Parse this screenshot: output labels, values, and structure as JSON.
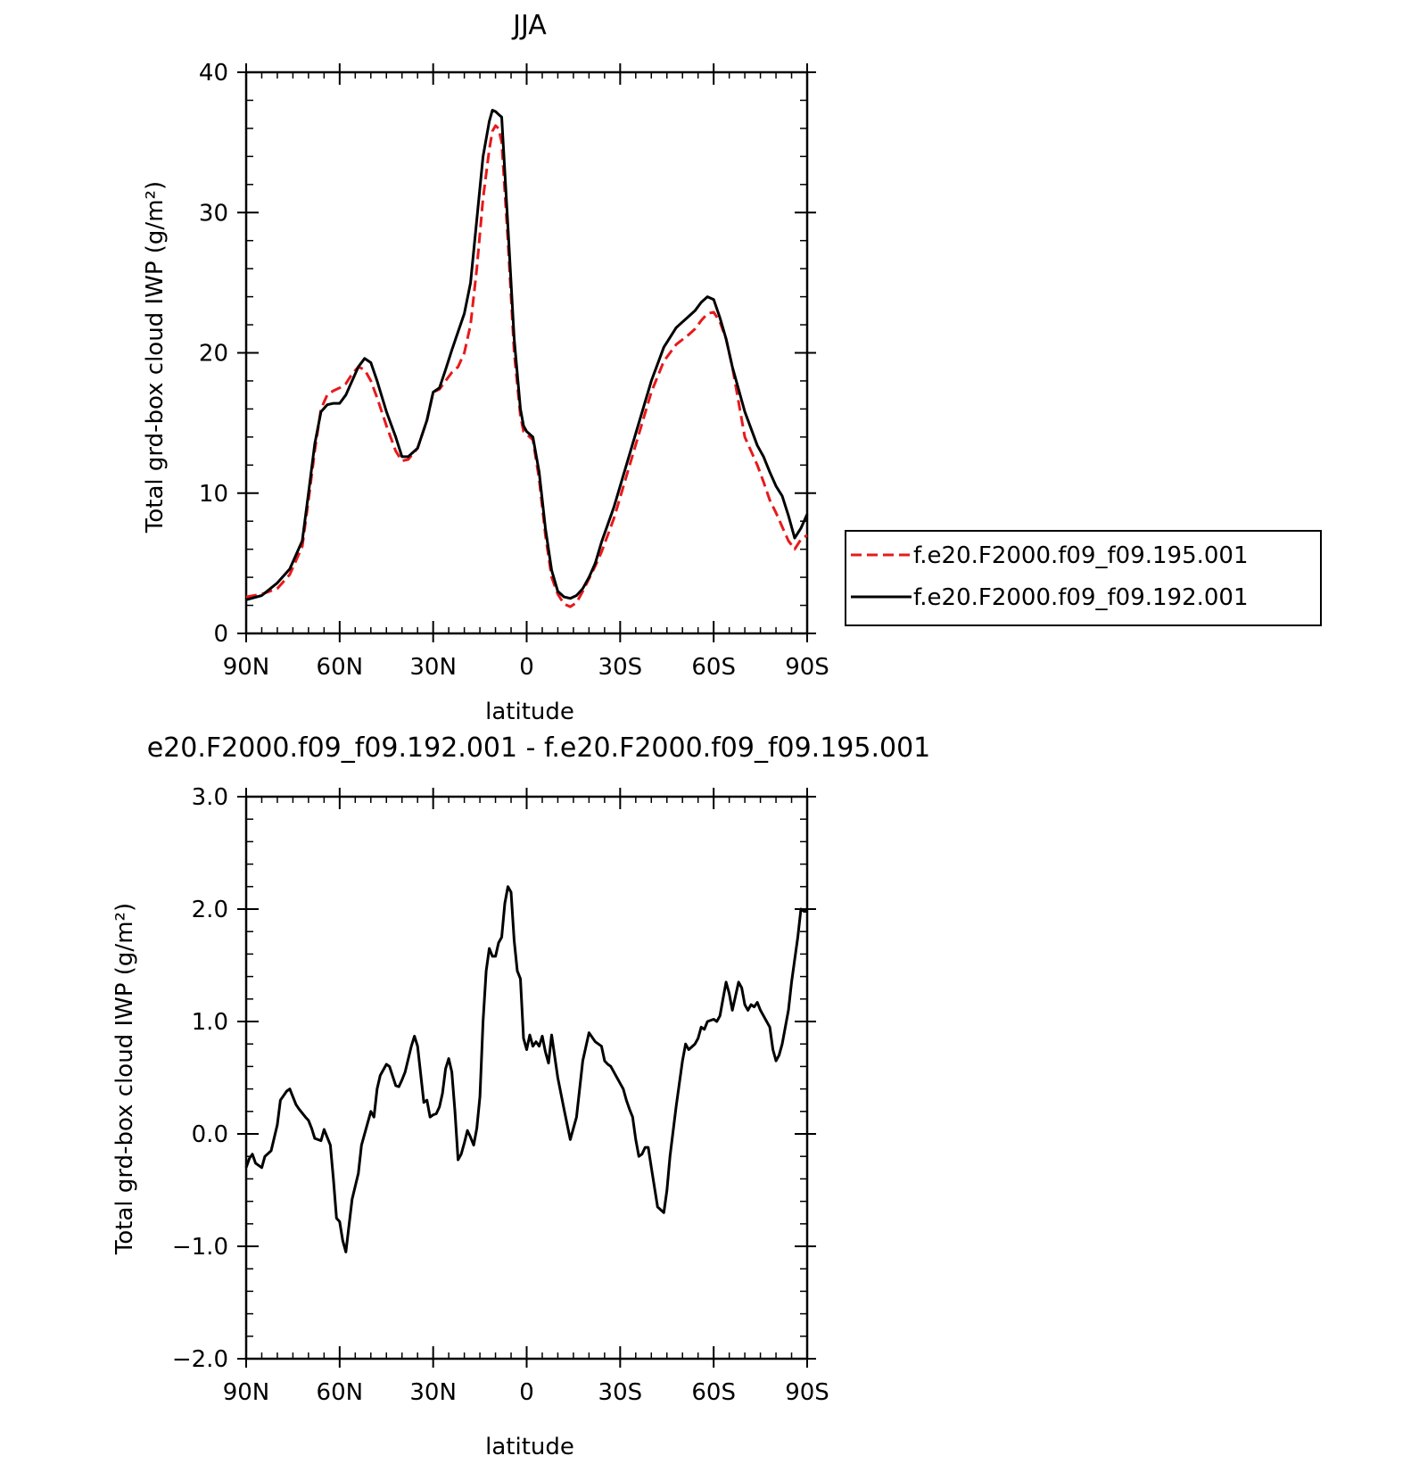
{
  "chart_data": [
    {
      "type": "line",
      "title": "JJA",
      "xlabel": "latitude",
      "ylabel": "Total grd-box cloud IWP (g/m²)",
      "xlim": [
        90,
        -90
      ],
      "ylim": [
        0,
        40
      ],
      "xticks": [
        90,
        60,
        30,
        0,
        -30,
        -60,
        -90
      ],
      "xtick_labels": [
        "90N",
        "60N",
        "30N",
        "0",
        "30S",
        "60S",
        "90S"
      ],
      "yticks": [
        0,
        10,
        20,
        30,
        40
      ],
      "ytick_labels": [
        "0",
        "10",
        "20",
        "30",
        "40"
      ],
      "legend_position": "right",
      "series": [
        {
          "name": "f.e20.F2000.f09_f09.195.001",
          "color": "#e8191b",
          "dash": "dashed",
          "x": [
            90,
            85,
            80,
            76,
            72,
            70,
            68,
            66,
            64,
            62,
            60,
            58,
            56,
            54,
            52,
            50,
            48,
            45,
            42,
            40,
            38,
            35,
            32,
            30,
            28,
            26,
            24,
            22,
            20,
            18,
            16,
            14,
            12,
            11,
            10,
            9,
            8,
            6,
            4,
            2,
            1,
            0,
            -2,
            -4,
            -6,
            -8,
            -10,
            -12,
            -14,
            -16,
            -18,
            -20,
            -22,
            -24,
            -28,
            -32,
            -36,
            -40,
            -44,
            -48,
            -52,
            -54,
            -56,
            -58,
            -60,
            -62,
            -64,
            -66,
            -70,
            -74,
            -76,
            -78,
            -80,
            -82,
            -84,
            -86,
            -88,
            -90
          ],
          "y": [
            2.6,
            2.8,
            3.2,
            4.2,
            6.2,
            9.5,
            13.0,
            16.0,
            17.0,
            17.3,
            17.5,
            17.8,
            18.5,
            19.0,
            18.8,
            18.0,
            16.8,
            14.8,
            13.0,
            12.3,
            12.4,
            13.2,
            15.2,
            17.2,
            17.4,
            18.0,
            18.6,
            19.0,
            20.0,
            22.0,
            26.0,
            31.0,
            34.5,
            35.8,
            36.2,
            36.0,
            35.0,
            28.0,
            20.0,
            15.5,
            14.4,
            14.2,
            13.8,
            11.0,
            7.0,
            4.0,
            2.8,
            2.1,
            1.9,
            2.2,
            3.0,
            3.9,
            4.8,
            5.8,
            8.2,
            11.2,
            14.2,
            17.2,
            19.4,
            20.6,
            21.3,
            21.7,
            22.3,
            22.8,
            22.9,
            22.2,
            21.0,
            19.0,
            14.0,
            12.0,
            10.8,
            9.5,
            8.6,
            7.6,
            6.6,
            6.0,
            6.7,
            7.0
          ]
        },
        {
          "name": "f.e20.F2000.f09_f09.192.001",
          "color": "#000000",
          "dash": "solid",
          "x": [
            90,
            85,
            80,
            76,
            72,
            70,
            68,
            66,
            64,
            62,
            60,
            58,
            56,
            54,
            52,
            50,
            48,
            45,
            42,
            40,
            38,
            35,
            32,
            30,
            28,
            26,
            24,
            22,
            20,
            18,
            16,
            14,
            12,
            11,
            10,
            9,
            8,
            6,
            4,
            2,
            1,
            0,
            -2,
            -4,
            -6,
            -8,
            -10,
            -12,
            -14,
            -16,
            -18,
            -20,
            -22,
            -24,
            -28,
            -32,
            -36,
            -40,
            -44,
            -48,
            -52,
            -54,
            -56,
            -58,
            -60,
            -62,
            -64,
            -66,
            -70,
            -74,
            -76,
            -78,
            -80,
            -82,
            -84,
            -86,
            -88,
            -90
          ],
          "y": [
            2.4,
            2.7,
            3.6,
            4.6,
            6.6,
            10.0,
            13.5,
            15.8,
            16.3,
            16.4,
            16.4,
            17.0,
            18.0,
            19.0,
            19.6,
            19.3,
            18.0,
            15.8,
            14.0,
            12.6,
            12.6,
            13.2,
            15.2,
            17.2,
            17.5,
            18.8,
            20.2,
            21.5,
            22.8,
            25.0,
            29.5,
            34.0,
            36.5,
            37.3,
            37.2,
            37.0,
            36.8,
            29.0,
            21.0,
            16.0,
            14.8,
            14.4,
            14.0,
            11.5,
            7.5,
            4.5,
            3.0,
            2.6,
            2.5,
            2.7,
            3.2,
            4.0,
            5.0,
            6.5,
            9.0,
            12.0,
            15.0,
            18.0,
            20.4,
            21.8,
            22.6,
            23.0,
            23.6,
            24.0,
            23.8,
            22.5,
            21.0,
            19.0,
            15.8,
            13.4,
            12.6,
            11.5,
            10.5,
            9.8,
            8.4,
            6.8,
            7.5,
            8.5
          ]
        }
      ]
    },
    {
      "type": "line",
      "title": "e20.F2000.f09_f09.192.001 - f.e20.F2000.f09_f09.195.001",
      "xlabel": "latitude",
      "ylabel": "Total grd-box cloud IWP (g/m²)",
      "xlim": [
        90,
        -90
      ],
      "ylim": [
        -2.0,
        3.0
      ],
      "xticks": [
        90,
        60,
        30,
        0,
        -30,
        -60,
        -90
      ],
      "xtick_labels": [
        "90N",
        "60N",
        "30N",
        "0",
        "30S",
        "60S",
        "90S"
      ],
      "yticks": [
        -2.0,
        -1.0,
        0.0,
        1.0,
        2.0,
        3.0
      ],
      "ytick_labels": [
        "−2.0",
        "−1.0",
        "0.0",
        "1.0",
        "2.0",
        "3.0"
      ],
      "series": [
        {
          "color": "#000000",
          "dash": "solid",
          "x": [
            90,
            89,
            88,
            87,
            85,
            84,
            82,
            80,
            79,
            77,
            76,
            74,
            73,
            71,
            70,
            69,
            68,
            66,
            65,
            63,
            62,
            61,
            60,
            59,
            58,
            56,
            54,
            53,
            52,
            50,
            49,
            48,
            47,
            45,
            44,
            42,
            41,
            40,
            39,
            37,
            36,
            35,
            33,
            32,
            31,
            30,
            29,
            28,
            27,
            26,
            25,
            24,
            23,
            22,
            21,
            20,
            19,
            18,
            17,
            16,
            15,
            14,
            13,
            12,
            11,
            10,
            9,
            8,
            7,
            6,
            5,
            4,
            3,
            2,
            1,
            0,
            -1,
            -2,
            -3,
            -4,
            -5,
            -6,
            -7,
            -8,
            -10,
            -12,
            -14,
            -16,
            -18,
            -20,
            -22,
            -24,
            -25,
            -26,
            -27,
            -28,
            -29,
            -30,
            -31,
            -32,
            -33,
            -34,
            -35,
            -36,
            -37,
            -38,
            -39,
            -40,
            -42,
            -44,
            -45,
            -46,
            -48,
            -50,
            -51,
            -52,
            -54,
            -55,
            -56,
            -57,
            -58,
            -60,
            -61,
            -62,
            -63,
            -64,
            -65,
            -66,
            -68,
            -69,
            -70,
            -71,
            -72,
            -73,
            -74,
            -75,
            -76,
            -78,
            -79,
            -80,
            -81,
            -82,
            -83,
            -84,
            -85,
            -86,
            -87,
            -88,
            -89,
            -90
          ],
          "y": [
            -0.3,
            -0.22,
            -0.18,
            -0.26,
            -0.3,
            -0.2,
            -0.15,
            0.08,
            0.3,
            0.38,
            0.4,
            0.26,
            0.22,
            0.15,
            0.12,
            0.05,
            -0.04,
            -0.06,
            0.04,
            -0.1,
            -0.4,
            -0.75,
            -0.78,
            -0.95,
            -1.05,
            -0.58,
            -0.35,
            -0.1,
            0.0,
            0.2,
            0.15,
            0.4,
            0.52,
            0.62,
            0.6,
            0.43,
            0.42,
            0.48,
            0.55,
            0.78,
            0.87,
            0.78,
            0.28,
            0.3,
            0.15,
            0.17,
            0.18,
            0.24,
            0.36,
            0.58,
            0.67,
            0.55,
            0.2,
            -0.23,
            -0.18,
            -0.08,
            0.03,
            -0.03,
            -0.1,
            0.05,
            0.33,
            1.0,
            1.45,
            1.65,
            1.58,
            1.58,
            1.7,
            1.75,
            2.05,
            2.2,
            2.15,
            1.72,
            1.45,
            1.38,
            0.85,
            0.75,
            0.88,
            0.78,
            0.82,
            0.78,
            0.87,
            0.73,
            0.63,
            0.88,
            0.5,
            0.22,
            -0.05,
            0.15,
            0.65,
            0.9,
            0.82,
            0.78,
            0.65,
            0.62,
            0.6,
            0.55,
            0.5,
            0.45,
            0.4,
            0.3,
            0.22,
            0.15,
            -0.05,
            -0.2,
            -0.18,
            -0.12,
            -0.12,
            -0.3,
            -0.65,
            -0.7,
            -0.5,
            -0.2,
            0.25,
            0.65,
            0.8,
            0.75,
            0.8,
            0.85,
            0.95,
            0.93,
            1.0,
            1.02,
            1.0,
            1.05,
            1.2,
            1.35,
            1.25,
            1.1,
            1.35,
            1.3,
            1.15,
            1.1,
            1.15,
            1.13,
            1.17,
            1.1,
            1.05,
            0.95,
            0.75,
            0.65,
            0.7,
            0.8,
            0.95,
            1.1,
            1.35,
            1.55,
            1.75,
            2.0,
            1.98,
            1.98
          ]
        }
      ]
    }
  ]
}
